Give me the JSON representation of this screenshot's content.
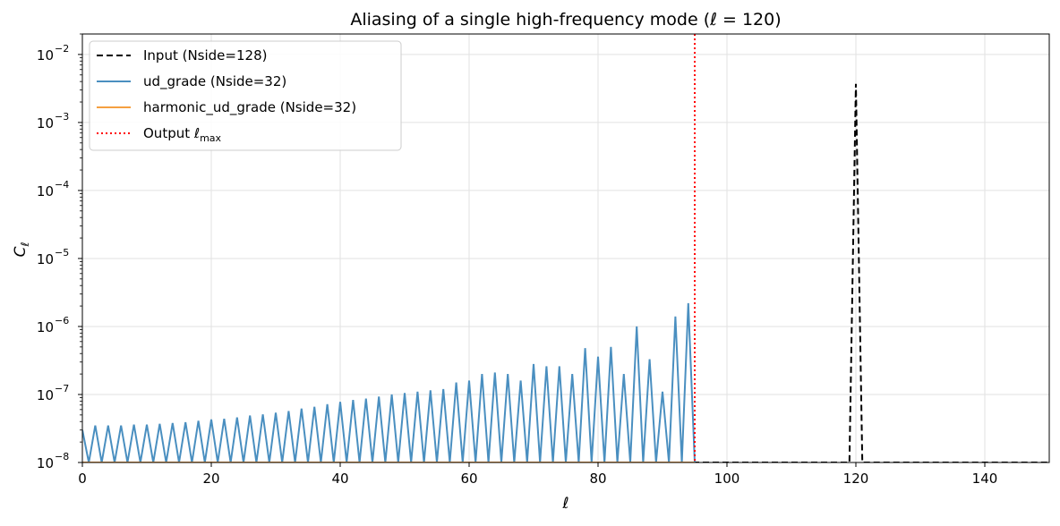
{
  "chart_data": {
    "type": "line",
    "title": "Aliasing of a single high-frequency mode (ℓ = 120)",
    "xlabel": "ℓ",
    "ylabel": "Cℓ",
    "xlim": [
      0,
      150
    ],
    "ylim": [
      1e-08,
      0.02
    ],
    "yscale": "log",
    "grid": true,
    "legend_position": "top-left",
    "x_ticks": [
      {
        "value": 0,
        "label": "0"
      },
      {
        "value": 20,
        "label": "20"
      },
      {
        "value": 40,
        "label": "40"
      },
      {
        "value": 60,
        "label": "60"
      },
      {
        "value": 80,
        "label": "80"
      },
      {
        "value": 100,
        "label": "100"
      },
      {
        "value": 120,
        "label": "120"
      },
      {
        "value": 140,
        "label": "140"
      }
    ],
    "y_ticks": [
      {
        "exp": -8,
        "label": "10",
        "sup": "−8"
      },
      {
        "exp": -7,
        "label": "10",
        "sup": "−7"
      },
      {
        "exp": -6,
        "label": "10",
        "sup": "−6"
      },
      {
        "exp": -5,
        "label": "10",
        "sup": "−5"
      },
      {
        "exp": -4,
        "label": "10",
        "sup": "−4"
      },
      {
        "exp": -3,
        "label": "10",
        "sup": "−3"
      },
      {
        "exp": -2,
        "label": "10",
        "sup": "−2"
      }
    ],
    "series": [
      {
        "name": "Input (Nside=128)",
        "color": "#000000",
        "style": "dashed",
        "points": [
          [
            0,
            1e-08
          ],
          [
            119,
            1e-08
          ],
          [
            120,
            0.0037
          ],
          [
            121,
            1e-08
          ],
          [
            150,
            1e-08
          ]
        ]
      },
      {
        "name": "ud_grade (Nside=32)",
        "color": "#4a8fc0",
        "style": "solid",
        "peaks": [
          [
            0,
            3e-08
          ],
          [
            2,
            3.5e-08
          ],
          [
            4,
            3.5e-08
          ],
          [
            6,
            3.5e-08
          ],
          [
            8,
            3.6e-08
          ],
          [
            10,
            3.6e-08
          ],
          [
            12,
            3.7e-08
          ],
          [
            14,
            3.8e-08
          ],
          [
            16,
            3.9e-08
          ],
          [
            18,
            4.1e-08
          ],
          [
            20,
            4.3e-08
          ],
          [
            22,
            4.4e-08
          ],
          [
            24,
            4.6e-08
          ],
          [
            26,
            4.9e-08
          ],
          [
            28,
            5.1e-08
          ],
          [
            30,
            5.4e-08
          ],
          [
            32,
            5.7e-08
          ],
          [
            34,
            6.2e-08
          ],
          [
            36,
            6.6e-08
          ],
          [
            38,
            7.2e-08
          ],
          [
            40,
            7.8e-08
          ],
          [
            42,
            8.3e-08
          ],
          [
            44,
            8.7e-08
          ],
          [
            46,
            9.3e-08
          ],
          [
            48,
            1e-07
          ],
          [
            50,
            1.05e-07
          ],
          [
            52,
            1.1e-07
          ],
          [
            54,
            1.15e-07
          ],
          [
            56,
            1.2e-07
          ],
          [
            58,
            1.5e-07
          ],
          [
            60,
            1.6e-07
          ],
          [
            62,
            2e-07
          ],
          [
            64,
            2.1e-07
          ],
          [
            66,
            2e-07
          ],
          [
            68,
            1.6e-07
          ],
          [
            70,
            2.8e-07
          ],
          [
            72,
            2.6e-07
          ],
          [
            74,
            2.6e-07
          ],
          [
            76,
            2e-07
          ],
          [
            78,
            4.8e-07
          ],
          [
            80,
            3.6e-07
          ],
          [
            82,
            5e-07
          ],
          [
            84,
            2e-07
          ],
          [
            86,
            1e-06
          ],
          [
            88,
            3.3e-07
          ],
          [
            90,
            1.1e-07
          ],
          [
            92,
            1.4e-06
          ],
          [
            94,
            2.2e-06
          ]
        ]
      },
      {
        "name": "harmonic_ud_grade (Nside=32)",
        "color": "#f5a040",
        "style": "solid",
        "points": [
          [
            0,
            1e-08
          ],
          [
            95,
            1e-08
          ]
        ]
      },
      {
        "name": "Output ℓ_max",
        "color": "#ff0000",
        "style": "dotted",
        "x": 95
      }
    ]
  }
}
